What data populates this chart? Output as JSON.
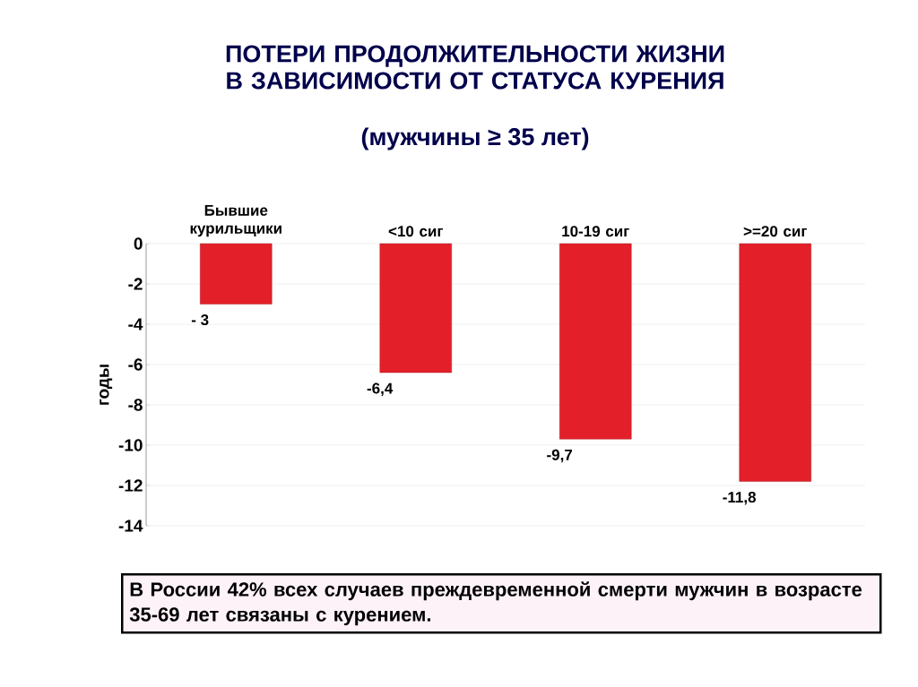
{
  "chart_data": {
    "type": "bar",
    "title": "ПОТЕРИ ПРОДОЛЖИТЕЛЬНОСТИ ЖИЗНИ В ЗАВИСИМОСТИ ОТ СТАТУСА КУРЕНИЯ",
    "subtitle": "(мужчины ≥ 35 лет)",
    "ylabel": "годы",
    "categories": [
      "Бывшие курильщики",
      "<10 сиг",
      "10-19 сиг",
      ">=20 сиг"
    ],
    "values": [
      -3,
      -6.4,
      -9.7,
      -11.8
    ],
    "value_labels": [
      "- 3",
      "-6,4",
      "-9,7",
      "-11,8"
    ],
    "color": "#e3202a",
    "ylim": [
      -14,
      0
    ],
    "yticks": [
      0,
      -2,
      -4,
      -6,
      -8,
      -10,
      -12,
      -14
    ],
    "grid": "y",
    "annotations": [
      "В России 42% всех случаев преждевременной смерти мужчин в возрасте 35-69 лет связаны с курением."
    ]
  }
}
